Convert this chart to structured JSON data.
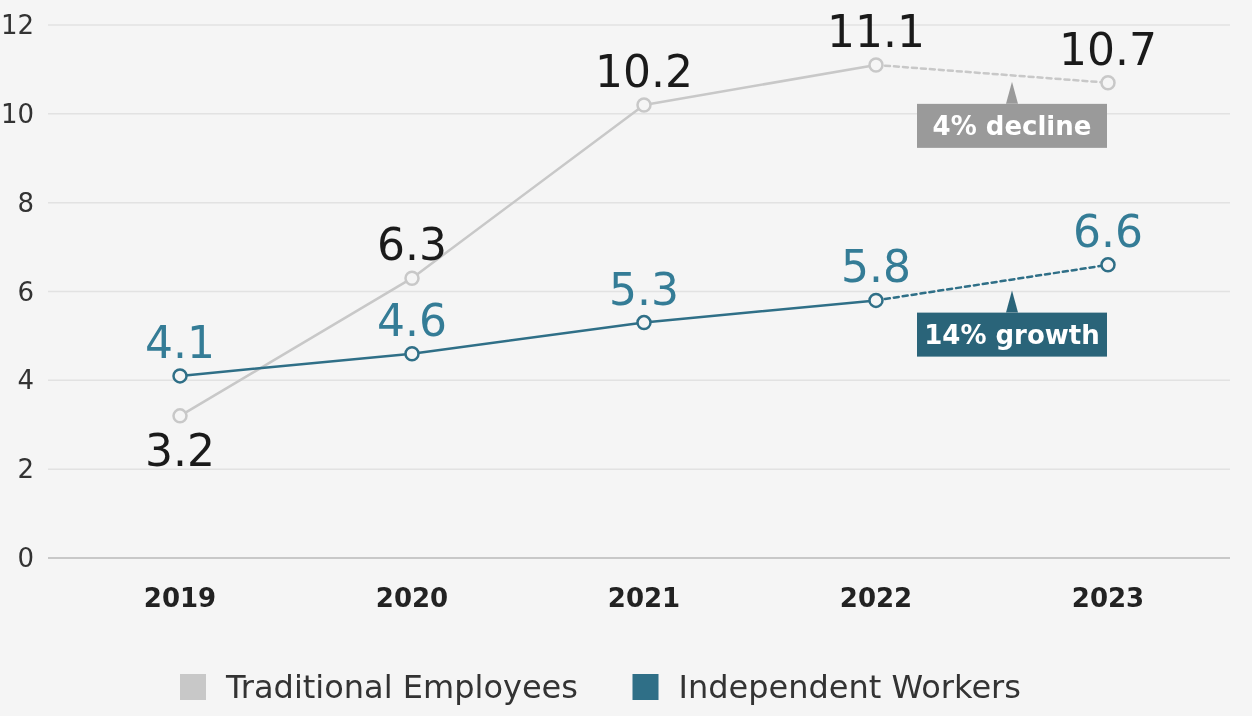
{
  "chart_data": {
    "type": "line",
    "categories": [
      "2019",
      "2020",
      "2021",
      "2022",
      "2023"
    ],
    "series": [
      {
        "name": "Traditional Employees",
        "color": "#c8c8c8",
        "values": [
          3.2,
          6.3,
          10.2,
          11.1,
          null
        ],
        "line_style": "solid"
      },
      {
        "name": "Independent Workers",
        "color": "#2f6f87",
        "values": [
          4.1,
          4.6,
          5.3,
          5.8,
          null
        ],
        "line_style": "solid"
      },
      {
        "color": "#c8c8c8",
        "values": [
          null,
          null,
          null,
          11.1,
          10.7
        ],
        "line_style": "dashed",
        "value_labels": [
          null,
          null,
          null,
          null,
          "10.7"
        ]
      },
      {
        "color": "#2f6f87",
        "values": [
          null,
          null,
          null,
          5.8,
          6.6
        ],
        "line_style": "dashed",
        "value_labels": [
          null,
          null,
          null,
          null,
          "6.6"
        ]
      }
    ],
    "ylim": [
      0,
      12
    ],
    "yticks": [
      0,
      2,
      4,
      6,
      8,
      10,
      12
    ],
    "grid": "y",
    "marker": "circle",
    "data_labels": true,
    "legend": "bottom",
    "annotations": [
      "4% decline",
      "14% growth"
    ]
  }
}
